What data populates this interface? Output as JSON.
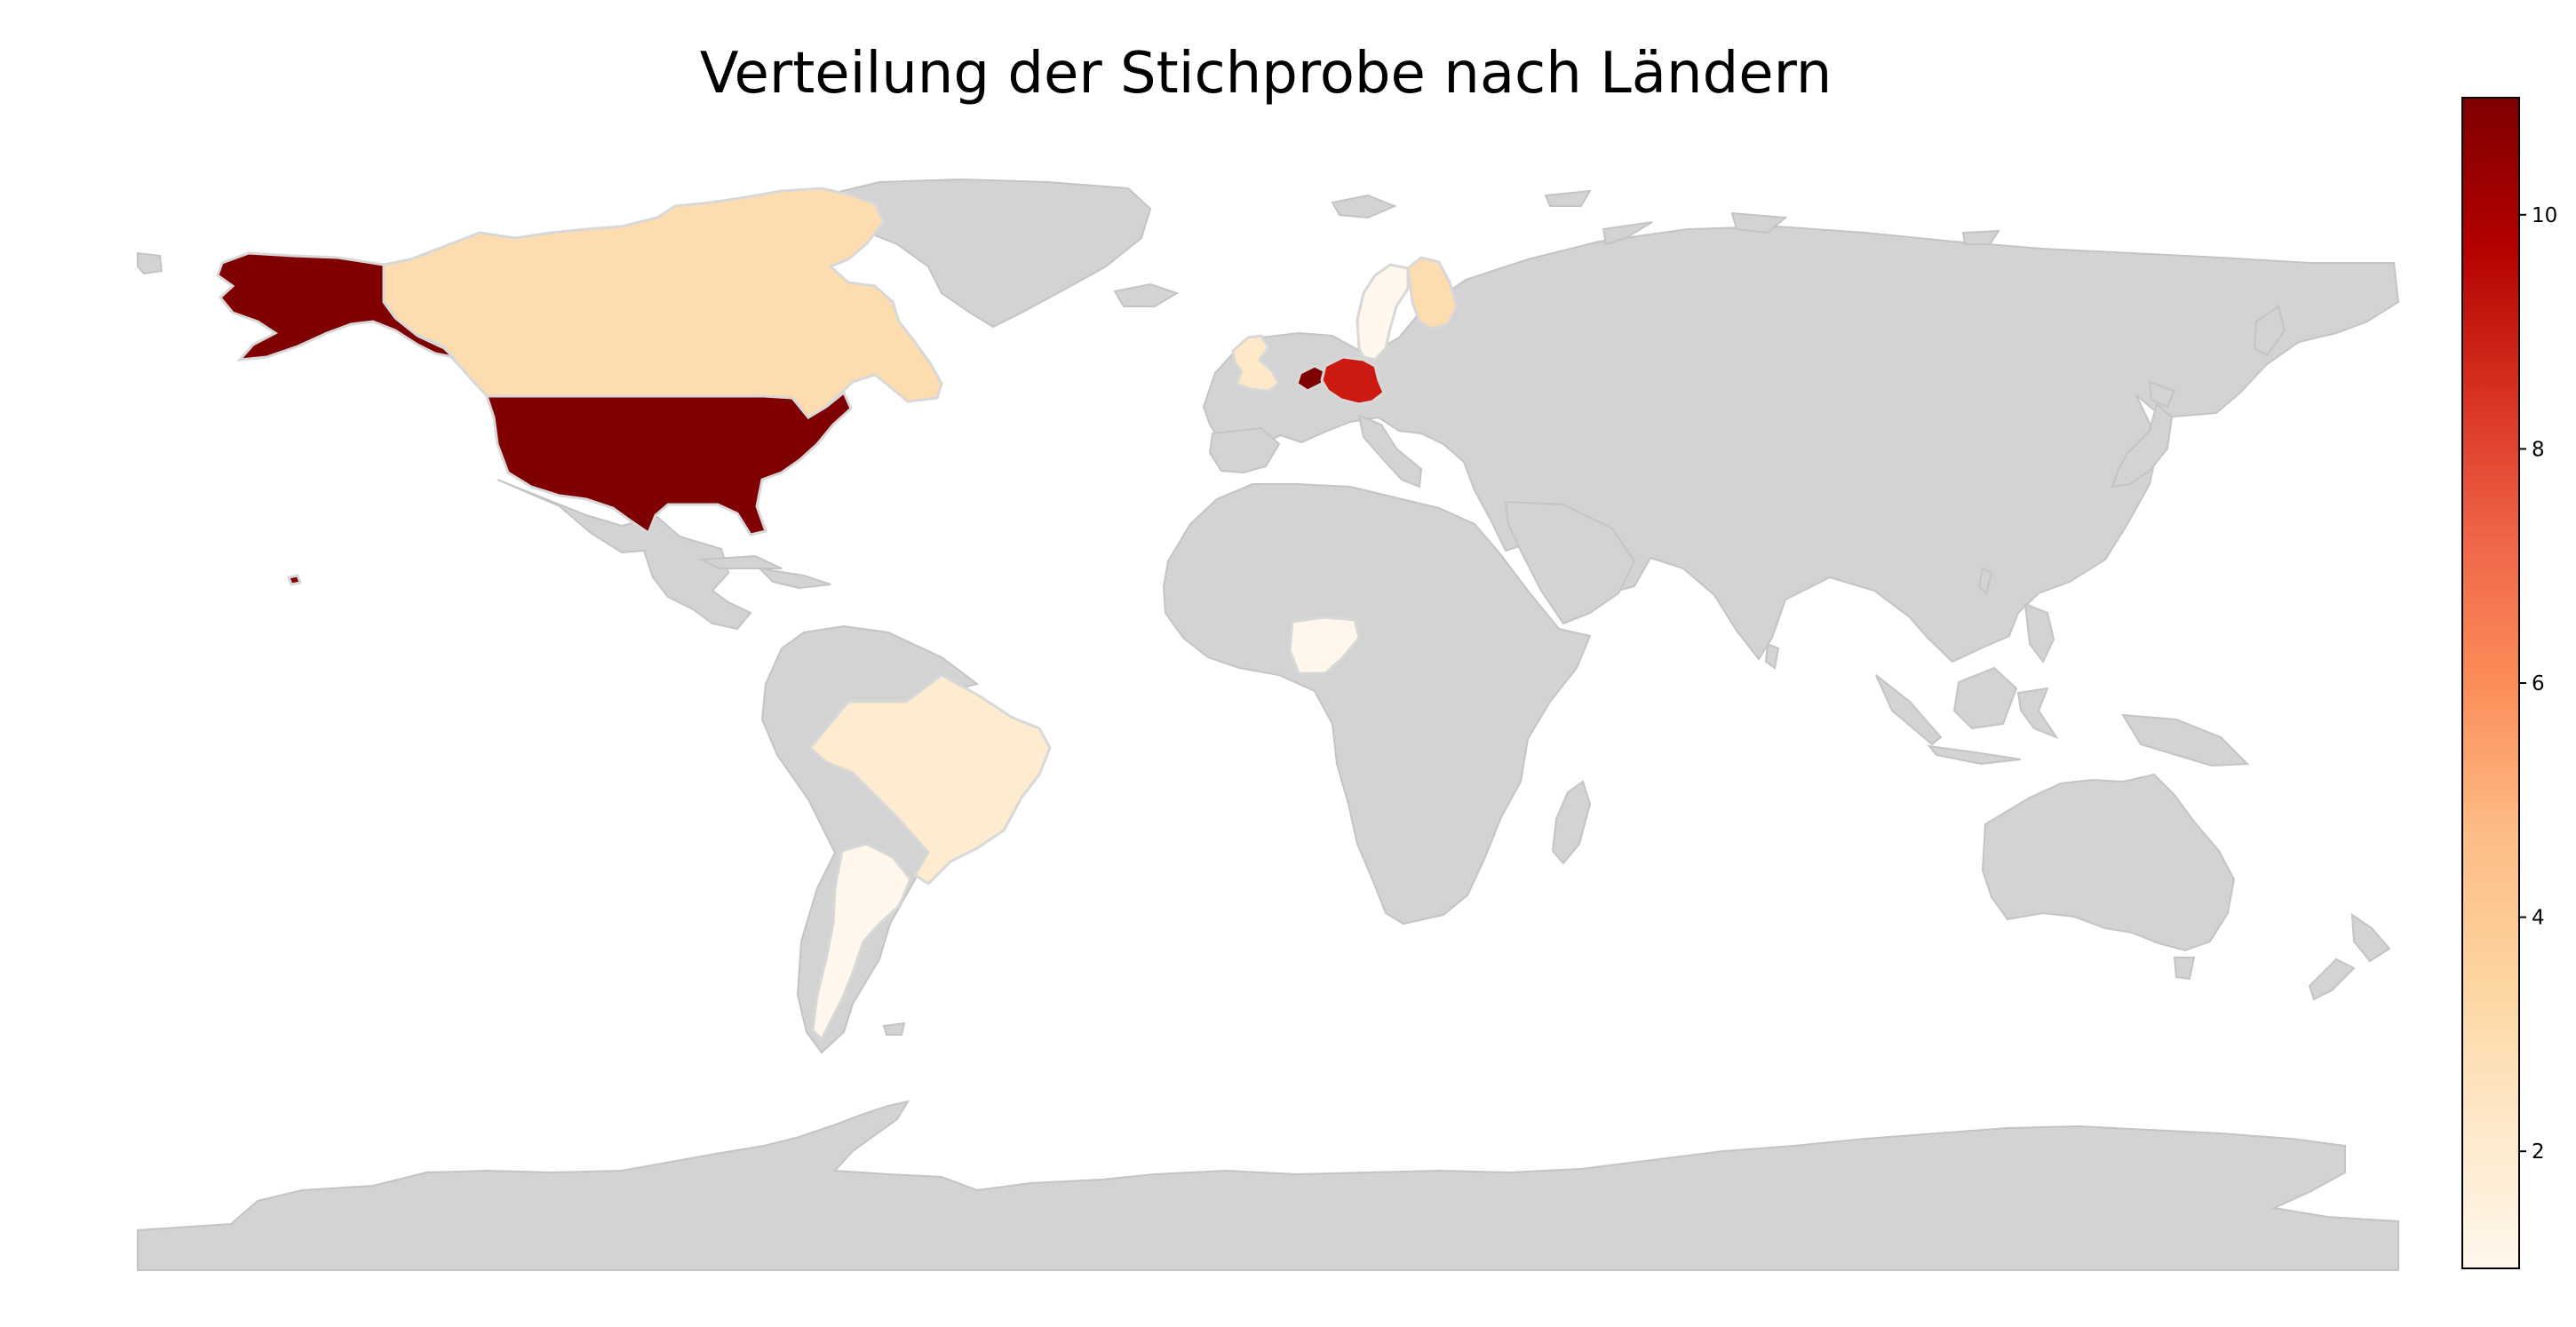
{
  "title": "Verteilung der Stichprobe nach Ländern",
  "chart_data": {
    "type": "choropleth",
    "title": "Verteilung der Stichprobe nach Ländern",
    "colorscale": "OrRd",
    "no_data_color": "#d3d3d3",
    "value_range": [
      1,
      11
    ],
    "colorbar": {
      "ticks": [
        2,
        4,
        6,
        8,
        10
      ],
      "tick_labels": [
        "2",
        "4",
        "6",
        "8",
        "10"
      ],
      "placement": "right",
      "stops": [
        "#fff7ec",
        "#fee8c8",
        "#fdd49e",
        "#fdbb84",
        "#fc8d59",
        "#ef6548",
        "#d7301f",
        "#b30000",
        "#7f0000"
      ]
    },
    "countries": [
      {
        "name": "United States",
        "value": 11,
        "color": "#7f0000"
      },
      {
        "name": "Netherlands",
        "value": 11,
        "color": "#7f0000"
      },
      {
        "name": "Germany",
        "value": 9,
        "color": "#cc1a12"
      },
      {
        "name": "Canada",
        "value": 3,
        "color": "#fddcaf"
      },
      {
        "name": "Finland",
        "value": 3,
        "color": "#fddcaf"
      },
      {
        "name": "United Kingdom",
        "value": 2,
        "color": "#fee8c8"
      },
      {
        "name": "Brazil",
        "value": 2,
        "color": "#feebd0"
      },
      {
        "name": "Sweden",
        "value": 1,
        "color": "#fff7ec"
      },
      {
        "name": "Nigeria",
        "value": 1,
        "color": "#fff7ec"
      },
      {
        "name": "Argentina",
        "value": 1,
        "color": "#fff7ec"
      }
    ]
  }
}
